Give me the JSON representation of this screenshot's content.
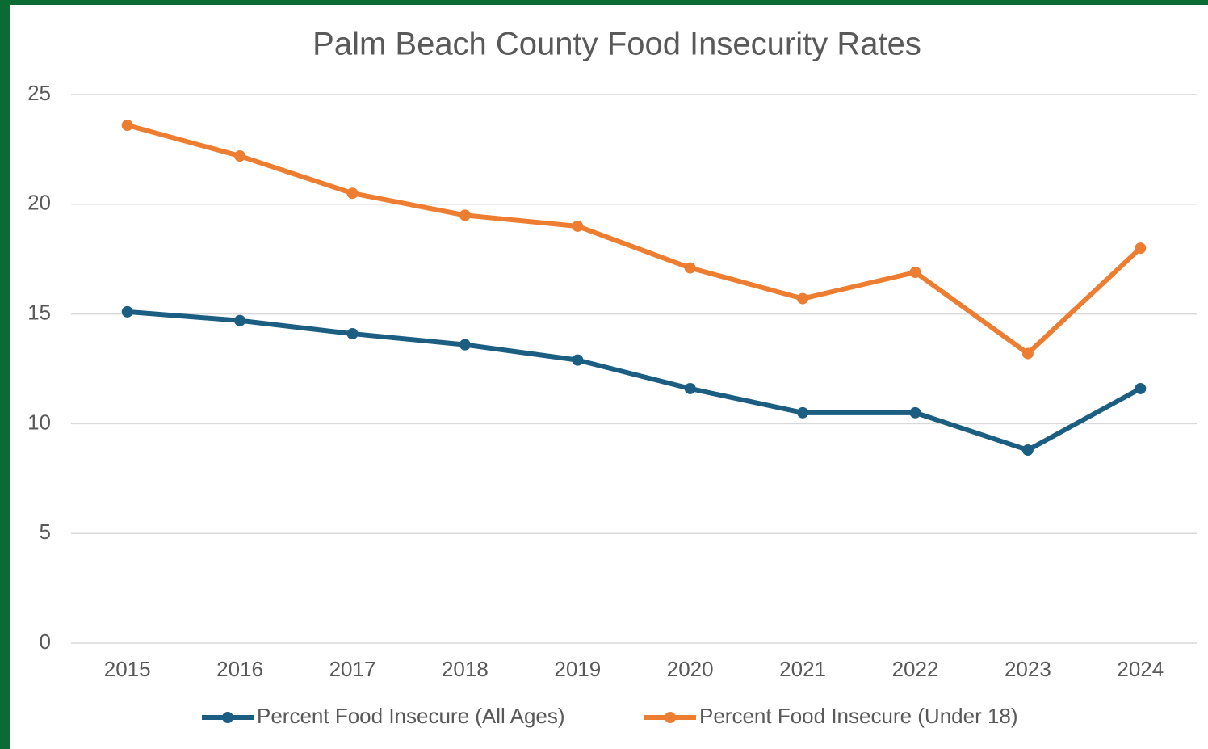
{
  "chart_data": {
    "type": "line",
    "title": "Palm Beach County Food Insecurity Rates",
    "categories": [
      "2015",
      "2016",
      "2017",
      "2018",
      "2019",
      "2020",
      "2021",
      "2022",
      "2023",
      "2024"
    ],
    "series": [
      {
        "name": "Percent Food Insecure (All Ages)",
        "color": "#1b5e82",
        "values": [
          15.1,
          14.7,
          14.1,
          13.6,
          12.9,
          11.6,
          10.5,
          10.5,
          8.8,
          11.6
        ]
      },
      {
        "name": "Percent Food Insecure (Under 18)",
        "color": "#ed7d31",
        "values": [
          23.6,
          22.2,
          20.5,
          19.5,
          19.0,
          17.1,
          15.7,
          16.9,
          13.2,
          18.0
        ]
      }
    ],
    "ylim": [
      0,
      25
    ],
    "yticks": [
      0,
      5,
      10,
      15,
      20,
      25
    ],
    "grid": true,
    "legend": "bottom"
  }
}
